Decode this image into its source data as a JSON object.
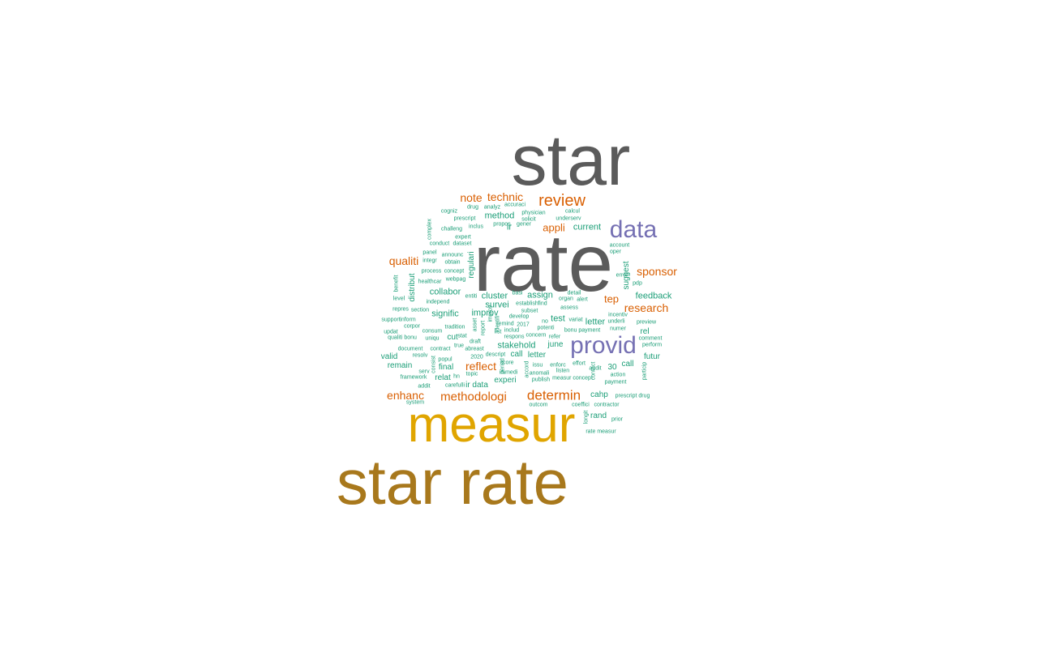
{
  "palette": {
    "gray": "#5b5b5b",
    "gold": "#e0a500",
    "brown": "#a8781c",
    "purple": "#7570b3",
    "orange": "#d95f02",
    "teal": "#1b9e77"
  },
  "words": [
    {
      "text": "star",
      "color": "gray",
      "weight": 10,
      "vertical": false
    },
    {
      "text": "rate",
      "color": "gray",
      "weight": 10,
      "vertical": false
    },
    {
      "text": "star rate",
      "color": "brown",
      "weight": 9,
      "vertical": false
    },
    {
      "text": "measur",
      "color": "gold",
      "weight": 8,
      "vertical": false
    },
    {
      "text": "data",
      "color": "purple",
      "weight": 5,
      "vertical": false
    },
    {
      "text": "provid",
      "color": "purple",
      "weight": 5,
      "vertical": false
    },
    {
      "text": "review",
      "color": "orange",
      "weight": 4,
      "vertical": false
    },
    {
      "text": "determin",
      "color": "orange",
      "weight": 4,
      "vertical": false
    },
    {
      "text": "methodologi",
      "color": "orange",
      "weight": 4,
      "vertical": false
    },
    {
      "text": "sponsor",
      "color": "orange",
      "weight": 3,
      "vertical": false
    },
    {
      "text": "research",
      "color": "orange",
      "weight": 3,
      "vertical": false
    },
    {
      "text": "reflect",
      "color": "orange",
      "weight": 3,
      "vertical": false
    },
    {
      "text": "enhanc",
      "color": "orange",
      "weight": 3,
      "vertical": false
    },
    {
      "text": "qualiti",
      "color": "orange",
      "weight": 3,
      "vertical": false
    },
    {
      "text": "note",
      "color": "orange",
      "weight": 3,
      "vertical": false
    },
    {
      "text": "technic",
      "color": "orange",
      "weight": 3,
      "vertical": false
    },
    {
      "text": "appli",
      "color": "orange",
      "weight": 3,
      "vertical": false
    },
    {
      "text": "tep",
      "color": "orange",
      "weight": 3,
      "vertical": false
    },
    {
      "text": "current",
      "color": "teal",
      "weight": 2,
      "vertical": false
    },
    {
      "text": "method",
      "color": "teal",
      "weight": 2,
      "vertical": false
    },
    {
      "text": "ir",
      "color": "teal",
      "weight": 2,
      "vertical": false
    },
    {
      "text": "feedback",
      "color": "teal",
      "weight": 2,
      "vertical": false
    },
    {
      "text": "collabor",
      "color": "teal",
      "weight": 2,
      "vertical": false
    },
    {
      "text": "cluster",
      "color": "teal",
      "weight": 2,
      "vertical": false
    },
    {
      "text": "assign",
      "color": "teal",
      "weight": 2,
      "vertical": false
    },
    {
      "text": "survei",
      "color": "teal",
      "weight": 2,
      "vertical": false
    },
    {
      "text": "signific",
      "color": "teal",
      "weight": 2,
      "vertical": false
    },
    {
      "text": "improv",
      "color": "teal",
      "weight": 2,
      "vertical": false
    },
    {
      "text": "test",
      "color": "teal",
      "weight": 2,
      "vertical": false
    },
    {
      "text": "letter",
      "color": "teal",
      "weight": 2,
      "vertical": false
    },
    {
      "text": "rel",
      "color": "teal",
      "weight": 2,
      "vertical": false
    },
    {
      "text": "cut",
      "color": "teal",
      "weight": 2,
      "vertical": false
    },
    {
      "text": "stakehold",
      "color": "teal",
      "weight": 2,
      "vertical": false
    },
    {
      "text": "june",
      "color": "teal",
      "weight": 2,
      "vertical": false
    },
    {
      "text": "valid",
      "color": "teal",
      "weight": 2,
      "vertical": false
    },
    {
      "text": "call",
      "color": "teal",
      "weight": 2,
      "vertical": false
    },
    {
      "text": "letter",
      "color": "teal",
      "weight": 2,
      "vertical": false
    },
    {
      "text": "futur",
      "color": "teal",
      "weight": 2,
      "vertical": false
    },
    {
      "text": "remain",
      "color": "teal",
      "weight": 2,
      "vertical": false
    },
    {
      "text": "final",
      "color": "teal",
      "weight": 2,
      "vertical": false
    },
    {
      "text": "30",
      "color": "teal",
      "weight": 2,
      "vertical": false
    },
    {
      "text": "call",
      "color": "teal",
      "weight": 2,
      "vertical": false
    },
    {
      "text": "relat",
      "color": "teal",
      "weight": 2,
      "vertical": false
    },
    {
      "text": "ir data",
      "color": "teal",
      "weight": 2,
      "vertical": false
    },
    {
      "text": "experi",
      "color": "teal",
      "weight": 2,
      "vertical": false
    },
    {
      "text": "cahp",
      "color": "teal",
      "weight": 2,
      "vertical": false
    },
    {
      "text": "rand",
      "color": "teal",
      "weight": 2,
      "vertical": false
    },
    {
      "text": "regulari",
      "color": "teal",
      "weight": 2,
      "vertical": true
    },
    {
      "text": "distribut",
      "color": "teal",
      "weight": 2,
      "vertical": true
    },
    {
      "text": "suggest",
      "color": "teal",
      "weight": 2,
      "vertical": true
    },
    {
      "text": "cogniz",
      "color": "teal",
      "weight": 1,
      "vertical": false
    },
    {
      "text": "drug",
      "color": "teal",
      "weight": 1,
      "vertical": false
    },
    {
      "text": "analyz",
      "color": "teal",
      "weight": 1,
      "vertical": false
    },
    {
      "text": "accuraci",
      "color": "teal",
      "weight": 1,
      "vertical": false
    },
    {
      "text": "physician",
      "color": "teal",
      "weight": 1,
      "vertical": false
    },
    {
      "text": "calcul",
      "color": "teal",
      "weight": 1,
      "vertical": false
    },
    {
      "text": "prescript",
      "color": "teal",
      "weight": 1,
      "vertical": false
    },
    {
      "text": "solicit",
      "color": "teal",
      "weight": 1,
      "vertical": false
    },
    {
      "text": "underserv",
      "color": "teal",
      "weight": 1,
      "vertical": false
    },
    {
      "text": "challeng",
      "color": "teal",
      "weight": 1,
      "vertical": false
    },
    {
      "text": "inclus",
      "color": "teal",
      "weight": 1,
      "vertical": false
    },
    {
      "text": "propos",
      "color": "teal",
      "weight": 1,
      "vertical": false
    },
    {
      "text": "gener",
      "color": "teal",
      "weight": 1,
      "vertical": false
    },
    {
      "text": "expert",
      "color": "teal",
      "weight": 1,
      "vertical": false
    },
    {
      "text": "conduct",
      "color": "teal",
      "weight": 1,
      "vertical": false
    },
    {
      "text": "dataset",
      "color": "teal",
      "weight": 1,
      "vertical": false
    },
    {
      "text": "account",
      "color": "teal",
      "weight": 1,
      "vertical": false
    },
    {
      "text": "oper",
      "color": "teal",
      "weight": 1,
      "vertical": false
    },
    {
      "text": "panel",
      "color": "teal",
      "weight": 1,
      "vertical": false
    },
    {
      "text": "announc",
      "color": "teal",
      "weight": 1,
      "vertical": false
    },
    {
      "text": "integr",
      "color": "teal",
      "weight": 1,
      "vertical": false
    },
    {
      "text": "obtain",
      "color": "teal",
      "weight": 1,
      "vertical": false
    },
    {
      "text": "process",
      "color": "teal",
      "weight": 1,
      "vertical": false
    },
    {
      "text": "concept",
      "color": "teal",
      "weight": 1,
      "vertical": false
    },
    {
      "text": "healthcar",
      "color": "teal",
      "weight": 1,
      "vertical": false
    },
    {
      "text": "webpag",
      "color": "teal",
      "weight": 1,
      "vertical": false
    },
    {
      "text": "error",
      "color": "teal",
      "weight": 1,
      "vertical": false
    },
    {
      "text": "pdp",
      "color": "teal",
      "weight": 1,
      "vertical": false
    },
    {
      "text": "level",
      "color": "teal",
      "weight": 1,
      "vertical": false
    },
    {
      "text": "independ",
      "color": "teal",
      "weight": 1,
      "vertical": false
    },
    {
      "text": "entiti",
      "color": "teal",
      "weight": 1,
      "vertical": false
    },
    {
      "text": "basi",
      "color": "teal",
      "weight": 1,
      "vertical": false
    },
    {
      "text": "detail",
      "color": "teal",
      "weight": 1,
      "vertical": false
    },
    {
      "text": "organ",
      "color": "teal",
      "weight": 1,
      "vertical": false
    },
    {
      "text": "alert",
      "color": "teal",
      "weight": 1,
      "vertical": false
    },
    {
      "text": "repres",
      "color": "teal",
      "weight": 1,
      "vertical": false
    },
    {
      "text": "section",
      "color": "teal",
      "weight": 1,
      "vertical": false
    },
    {
      "text": "establish",
      "color": "teal",
      "weight": 1,
      "vertical": false
    },
    {
      "text": "find",
      "color": "teal",
      "weight": 1,
      "vertical": false
    },
    {
      "text": "assess",
      "color": "teal",
      "weight": 1,
      "vertical": false
    },
    {
      "text": "incentiv",
      "color": "teal",
      "weight": 1,
      "vertical": false
    },
    {
      "text": "support",
      "color": "teal",
      "weight": 1,
      "vertical": false
    },
    {
      "text": "inform",
      "color": "teal",
      "weight": 1,
      "vertical": false
    },
    {
      "text": "subset",
      "color": "teal",
      "weight": 1,
      "vertical": false
    },
    {
      "text": "develop",
      "color": "teal",
      "weight": 1,
      "vertical": false
    },
    {
      "text": "underli",
      "color": "teal",
      "weight": 1,
      "vertical": false
    },
    {
      "text": "preview",
      "color": "teal",
      "weight": 1,
      "vertical": false
    },
    {
      "text": "corpor",
      "color": "teal",
      "weight": 1,
      "vertical": false
    },
    {
      "text": "tradition",
      "color": "teal",
      "weight": 1,
      "vertical": false
    },
    {
      "text": "remind",
      "color": "teal",
      "weight": 1,
      "vertical": false
    },
    {
      "text": "2017",
      "color": "teal",
      "weight": 1,
      "vertical": false
    },
    {
      "text": "no",
      "color": "teal",
      "weight": 1,
      "vertical": false
    },
    {
      "text": "potenti",
      "color": "teal",
      "weight": 1,
      "vertical": false
    },
    {
      "text": "variat",
      "color": "teal",
      "weight": 1,
      "vertical": false
    },
    {
      "text": "updat",
      "color": "teal",
      "weight": 1,
      "vertical": false
    },
    {
      "text": "consum",
      "color": "teal",
      "weight": 1,
      "vertical": false
    },
    {
      "text": "list",
      "color": "teal",
      "weight": 1,
      "vertical": false
    },
    {
      "text": "includ",
      "color": "teal",
      "weight": 1,
      "vertical": false
    },
    {
      "text": "concern",
      "color": "teal",
      "weight": 1,
      "vertical": false
    },
    {
      "text": "bonu payment",
      "color": "teal",
      "weight": 1,
      "vertical": false
    },
    {
      "text": "numer",
      "color": "teal",
      "weight": 1,
      "vertical": false
    },
    {
      "text": "qualiti bonu",
      "color": "teal",
      "weight": 1,
      "vertical": false
    },
    {
      "text": "uniqu",
      "color": "teal",
      "weight": 1,
      "vertical": false
    },
    {
      "text": "stat",
      "color": "teal",
      "weight": 1,
      "vertical": false
    },
    {
      "text": "draft",
      "color": "teal",
      "weight": 1,
      "vertical": false
    },
    {
      "text": "respons",
      "color": "teal",
      "weight": 1,
      "vertical": false
    },
    {
      "text": "refer",
      "color": "teal",
      "weight": 1,
      "vertical": false
    },
    {
      "text": "comment",
      "color": "teal",
      "weight": 1,
      "vertical": false
    },
    {
      "text": "perform",
      "color": "teal",
      "weight": 1,
      "vertical": false
    },
    {
      "text": "document",
      "color": "teal",
      "weight": 1,
      "vertical": false
    },
    {
      "text": "contract",
      "color": "teal",
      "weight": 1,
      "vertical": false
    },
    {
      "text": "true",
      "color": "teal",
      "weight": 1,
      "vertical": false
    },
    {
      "text": "abreast",
      "color": "teal",
      "weight": 1,
      "vertical": false
    },
    {
      "text": "resolv",
      "color": "teal",
      "weight": 1,
      "vertical": false
    },
    {
      "text": "popul",
      "color": "teal",
      "weight": 1,
      "vertical": false
    },
    {
      "text": "2020",
      "color": "teal",
      "weight": 1,
      "vertical": false
    },
    {
      "text": "descript",
      "color": "teal",
      "weight": 1,
      "vertical": false
    },
    {
      "text": "score",
      "color": "teal",
      "weight": 1,
      "vertical": false
    },
    {
      "text": "issu",
      "color": "teal",
      "weight": 1,
      "vertical": false
    },
    {
      "text": "effort",
      "color": "teal",
      "weight": 1,
      "vertical": false
    },
    {
      "text": "enforc",
      "color": "teal",
      "weight": 1,
      "vertical": false
    },
    {
      "text": "serv",
      "color": "teal",
      "weight": 1,
      "vertical": false
    },
    {
      "text": "immedi",
      "color": "teal",
      "weight": 1,
      "vertical": false
    },
    {
      "text": "anomali",
      "color": "teal",
      "weight": 1,
      "vertical": false
    },
    {
      "text": "listen",
      "color": "teal",
      "weight": 1,
      "vertical": false
    },
    {
      "text": "audit",
      "color": "teal",
      "weight": 1,
      "vertical": false
    },
    {
      "text": "framework",
      "color": "teal",
      "weight": 1,
      "vertical": false
    },
    {
      "text": "hn",
      "color": "teal",
      "weight": 1,
      "vertical": false
    },
    {
      "text": "topic",
      "color": "teal",
      "weight": 1,
      "vertical": false
    },
    {
      "text": "measur concept",
      "color": "teal",
      "weight": 1,
      "vertical": false
    },
    {
      "text": "action",
      "color": "teal",
      "weight": 1,
      "vertical": false
    },
    {
      "text": "addit",
      "color": "teal",
      "weight": 1,
      "vertical": false
    },
    {
      "text": "carefulli",
      "color": "teal",
      "weight": 1,
      "vertical": false
    },
    {
      "text": "publish",
      "color": "teal",
      "weight": 1,
      "vertical": false
    },
    {
      "text": "payment",
      "color": "teal",
      "weight": 1,
      "vertical": false
    },
    {
      "text": "prescript drug",
      "color": "teal",
      "weight": 1,
      "vertical": false
    },
    {
      "text": "system",
      "color": "teal",
      "weight": 1,
      "vertical": false
    },
    {
      "text": "outcom",
      "color": "teal",
      "weight": 1,
      "vertical": false
    },
    {
      "text": "coeffici",
      "color": "teal",
      "weight": 1,
      "vertical": false
    },
    {
      "text": "contractor",
      "color": "teal",
      "weight": 1,
      "vertical": false
    },
    {
      "text": "prior",
      "color": "teal",
      "weight": 1,
      "vertical": false
    },
    {
      "text": "rate measur",
      "color": "teal",
      "weight": 1,
      "vertical": false
    },
    {
      "text": "complex",
      "color": "teal",
      "weight": 1,
      "vertical": true
    },
    {
      "text": "asset",
      "color": "teal",
      "weight": 1,
      "vertical": true
    },
    {
      "text": "report",
      "color": "teal",
      "weight": 1,
      "vertical": true
    },
    {
      "text": "period",
      "color": "teal",
      "weight": 1,
      "vertical": true
    },
    {
      "text": "accord",
      "color": "teal",
      "weight": 1,
      "vertical": true
    },
    {
      "text": "benefit",
      "color": "teal",
      "weight": 1,
      "vertical": true
    },
    {
      "text": "improv",
      "color": "teal",
      "weight": 1,
      "vertical": true
    },
    {
      "text": "identifi",
      "color": "teal",
      "weight": 1,
      "vertical": true
    },
    {
      "text": "consist",
      "color": "teal",
      "weight": 1,
      "vertical": true
    },
    {
      "text": "contact",
      "color": "teal",
      "weight": 1,
      "vertical": true
    },
    {
      "text": "particip",
      "color": "teal",
      "weight": 1,
      "vertical": true
    },
    {
      "text": "longit",
      "color": "teal",
      "weight": 1,
      "vertical": true
    }
  ]
}
